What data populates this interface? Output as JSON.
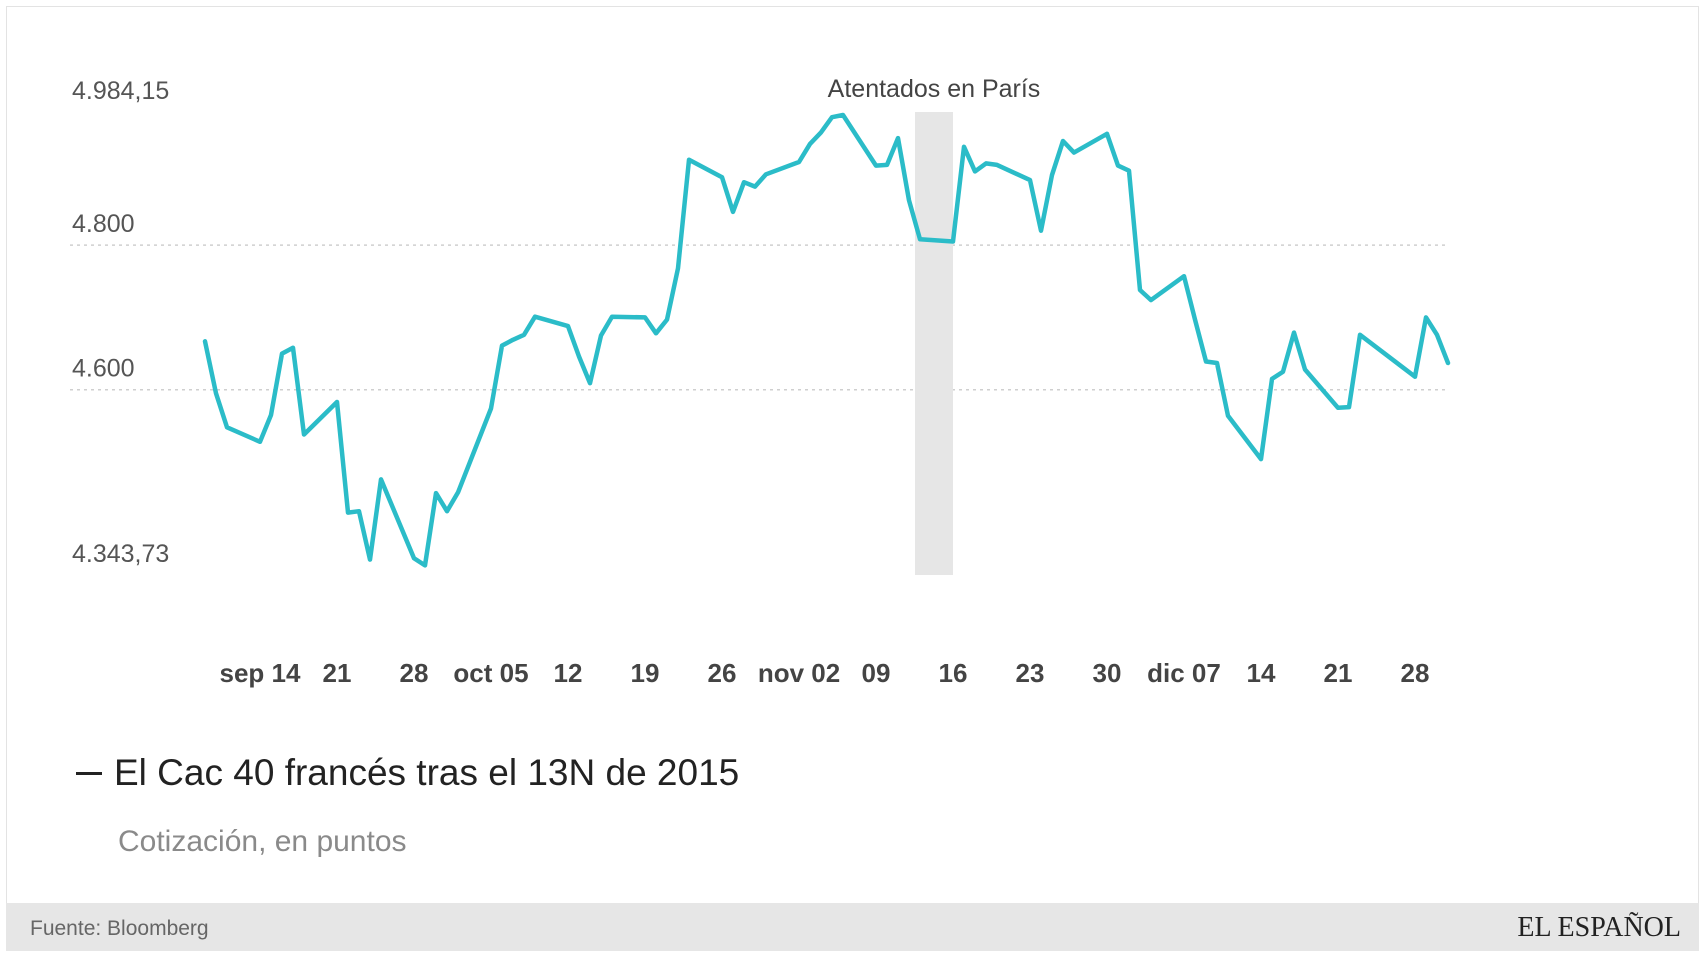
{
  "chart_data": {
    "type": "line",
    "title": "El Cac 40 francés tras el 13N de 2015",
    "subtitle": "Cotización, en puntos",
    "yticks": [
      "4.984,15",
      "4.800",
      "4.600",
      "4.343,73"
    ],
    "ytick_values": [
      4984.15,
      4800,
      4600,
      4343.73
    ],
    "ylim": [
      4343.73,
      4984.15
    ],
    "grid": "dotted horizontal at 4.800 and 4.600",
    "xticks": [
      {
        "label": "sep 14",
        "date": "2015-09-14"
      },
      {
        "label": "21",
        "date": "2015-09-21"
      },
      {
        "label": "28",
        "date": "2015-09-28"
      },
      {
        "label": "oct 05",
        "date": "2015-10-05"
      },
      {
        "label": "12",
        "date": "2015-10-12"
      },
      {
        "label": "19",
        "date": "2015-10-19"
      },
      {
        "label": "26",
        "date": "2015-10-26"
      },
      {
        "label": "nov 02",
        "date": "2015-11-02"
      },
      {
        "label": "09",
        "date": "2015-11-09"
      },
      {
        "label": "16",
        "date": "2015-11-16"
      },
      {
        "label": "23",
        "date": "2015-11-23"
      },
      {
        "label": "30",
        "date": "2015-11-30"
      },
      {
        "label": "dic 07",
        "date": "2015-12-07"
      },
      {
        "label": "14",
        "date": "2015-12-14"
      },
      {
        "label": "21",
        "date": "2015-12-21"
      },
      {
        "label": "28",
        "date": "2015-12-28"
      }
    ],
    "annotation": {
      "text": "Atentados en París",
      "x_start": "2015-11-13",
      "x_end": "2015-11-16"
    },
    "line_color": "#2bbcc8",
    "series": [
      {
        "points": [
          [
            "2015-09-09",
            4667
          ],
          [
            "2015-09-10",
            4595
          ],
          [
            "2015-09-11",
            4548
          ],
          [
            "2015-09-14",
            4528
          ],
          [
            "2015-09-15",
            4565
          ],
          [
            "2015-09-16",
            4650
          ],
          [
            "2015-09-17",
            4658
          ],
          [
            "2015-09-18",
            4538
          ],
          [
            "2015-09-21",
            4583
          ],
          [
            "2015-09-22",
            4430
          ],
          [
            "2015-09-23",
            4432
          ],
          [
            "2015-09-24",
            4365
          ],
          [
            "2015-09-25",
            4476
          ],
          [
            "2015-09-28",
            4367
          ],
          [
            "2015-09-29",
            4357
          ],
          [
            "2015-09-30",
            4457
          ],
          [
            "2015-10-01",
            4432
          ],
          [
            "2015-10-02",
            4458
          ],
          [
            "2015-10-05",
            4574
          ],
          [
            "2015-10-06",
            4661
          ],
          [
            "2015-10-07",
            4669
          ],
          [
            "2015-10-08",
            4676
          ],
          [
            "2015-10-09",
            4701
          ],
          [
            "2015-10-12",
            4688
          ],
          [
            "2015-10-13",
            4646
          ],
          [
            "2015-10-14",
            4609
          ],
          [
            "2015-10-15",
            4675
          ],
          [
            "2015-10-16",
            4701
          ],
          [
            "2015-10-19",
            4700
          ],
          [
            "2015-10-20",
            4678
          ],
          [
            "2015-10-21",
            4697
          ],
          [
            "2015-10-22",
            4768
          ],
          [
            "2015-10-23",
            4918
          ],
          [
            "2015-10-26",
            4894
          ],
          [
            "2015-10-27",
            4846
          ],
          [
            "2015-10-28",
            4887
          ],
          [
            "2015-10-29",
            4881
          ],
          [
            "2015-10-30",
            4898
          ],
          [
            "2015-11-02",
            4915
          ],
          [
            "2015-11-03",
            4940
          ],
          [
            "2015-11-04",
            4956
          ],
          [
            "2015-11-05",
            4977
          ],
          [
            "2015-11-06",
            4980
          ],
          [
            "2015-11-09",
            4910
          ],
          [
            "2015-11-10",
            4911
          ],
          [
            "2015-11-11",
            4948
          ],
          [
            "2015-11-12",
            4862
          ],
          [
            "2015-11-13",
            4808
          ],
          [
            "2015-11-16",
            4805
          ],
          [
            "2015-11-17",
            4936
          ],
          [
            "2015-11-18",
            4902
          ],
          [
            "2015-11-19",
            4913
          ],
          [
            "2015-11-20",
            4911
          ],
          [
            "2015-11-23",
            4890
          ],
          [
            "2015-11-24",
            4820
          ],
          [
            "2015-11-25",
            4897
          ],
          [
            "2015-11-26",
            4944
          ],
          [
            "2015-11-27",
            4928
          ],
          [
            "2015-11-30",
            4954
          ],
          [
            "2015-12-01",
            4910
          ],
          [
            "2015-12-02",
            4903
          ],
          [
            "2015-12-03",
            4738
          ],
          [
            "2015-12-04",
            4724
          ],
          [
            "2015-12-07",
            4757
          ],
          [
            "2015-12-08",
            4697
          ],
          [
            "2015-12-09",
            4639
          ],
          [
            "2015-12-10",
            4637
          ],
          [
            "2015-12-11",
            4564
          ],
          [
            "2015-12-14",
            4504
          ],
          [
            "2015-12-15",
            4615
          ],
          [
            "2015-12-16",
            4625
          ],
          [
            "2015-12-17",
            4679
          ],
          [
            "2015-12-18",
            4628
          ],
          [
            "2015-12-21",
            4575
          ],
          [
            "2015-12-22",
            4576
          ],
          [
            "2015-12-23",
            4676
          ],
          [
            "2015-12-28",
            4618
          ],
          [
            "2015-12-29",
            4700
          ],
          [
            "2015-12-30",
            4676
          ],
          [
            "2015-12-31",
            4637
          ]
        ]
      }
    ]
  },
  "footer": {
    "source": "Fuente: Bloomberg",
    "brand": "EL ESPAÑOL"
  }
}
